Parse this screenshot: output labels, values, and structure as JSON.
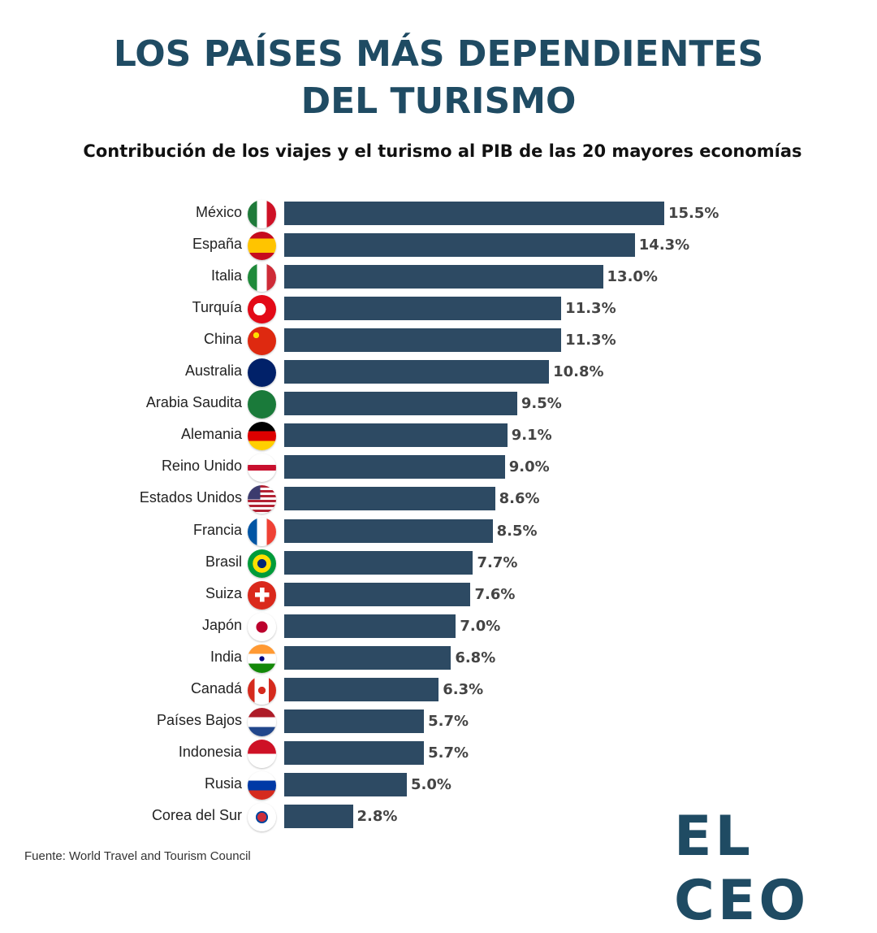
{
  "title_line1": "LOS PAÍSES MÁS DEPENDIENTES",
  "title_line2": "DEL TURISMO",
  "subtitle": "Contribución de los viajes y el turismo al PIB de las 20 mayores economías",
  "source": "Fuente: World Travel and Tourism Council",
  "logo": "EL CEO",
  "chart_data": {
    "type": "bar",
    "orientation": "horizontal",
    "title": "LOS PAÍSES MÁS DEPENDIENTES DEL TURISMO",
    "subtitle": "Contribución de los viajes y el turismo al PIB de las 20 mayores economías",
    "xlabel": "",
    "ylabel": "",
    "xlim": [
      0,
      15.5
    ],
    "unit": "%",
    "bar_color": "#2d4a63",
    "categories": [
      "México",
      "España",
      "Italia",
      "Turquía",
      "China",
      "Australia",
      "Arabia Saudita",
      "Alemania",
      "Reino Unido",
      "Estados Unidos",
      "Francia",
      "Brasil",
      "Suiza",
      "Japón",
      "India",
      "Canadá",
      "Países Bajos",
      "Indonesia",
      "Rusia",
      "Corea del Sur"
    ],
    "values": [
      15.5,
      14.3,
      13.0,
      11.3,
      11.3,
      10.8,
      9.5,
      9.1,
      9.0,
      8.6,
      8.5,
      7.7,
      7.6,
      7.0,
      6.8,
      6.3,
      5.7,
      5.7,
      5.0,
      2.8
    ],
    "labels": [
      "15.5%",
      "14.3%",
      "13.0%",
      "11.3%",
      "11.3%",
      "10.8%",
      "9.5%",
      "9.1%",
      "9.0%",
      "8.6%",
      "8.5%",
      "7.7%",
      "7.6%",
      "7.0%",
      "6.8%",
      "6.3%",
      "5.7%",
      "5.7%",
      "5.0%",
      "2.8%"
    ],
    "flags": [
      "mx",
      "es",
      "it",
      "tr",
      "cn",
      "au",
      "sa",
      "de",
      "gb",
      "us",
      "fr",
      "br",
      "ch",
      "jp",
      "in",
      "ca",
      "nl",
      "id",
      "ru",
      "kr"
    ]
  }
}
